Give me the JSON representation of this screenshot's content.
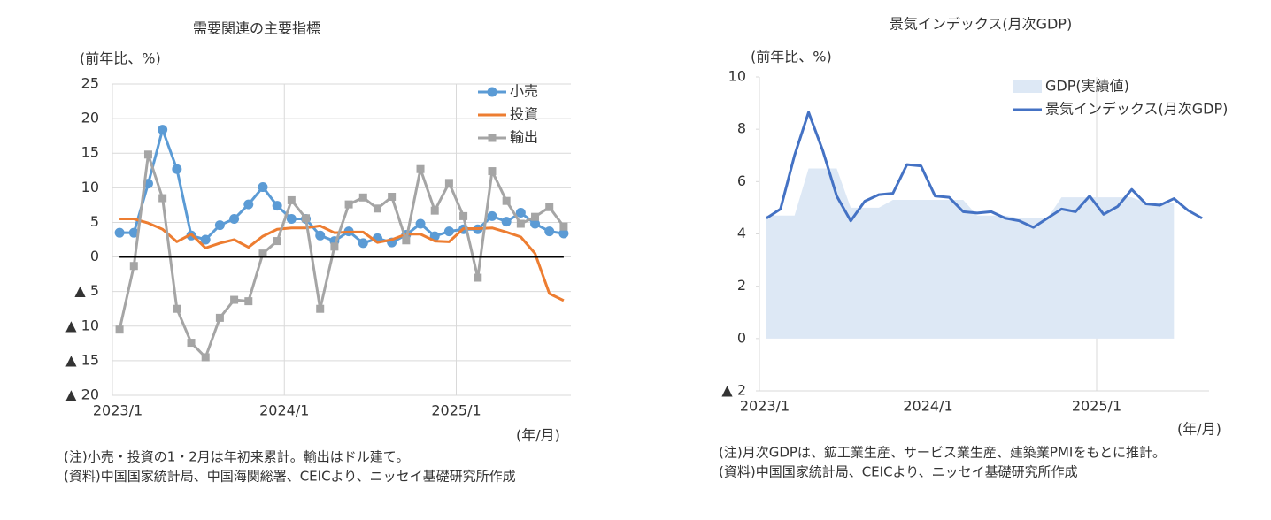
{
  "chart_data": [
    {
      "type": "line",
      "title": "需要関連の主要指標",
      "y_unit": "(前年比、%)",
      "x_unit": "(年/月)",
      "categories": [
        "2023/1",
        null,
        null,
        null,
        null,
        null,
        null,
        null,
        null,
        null,
        null,
        null,
        "2024/1",
        null,
        null,
        null,
        null,
        null,
        null,
        null,
        null,
        null,
        null,
        null,
        "2025/1",
        null,
        null,
        null,
        null,
        null,
        null,
        null
      ],
      "series": [
        {
          "name": "小売",
          "color": "#5b9bd5",
          "marker": "circle",
          "values": [
            3.5,
            3.5,
            10.6,
            18.4,
            12.7,
            3.1,
            2.5,
            4.6,
            5.5,
            7.6,
            10.1,
            7.4,
            5.5,
            5.5,
            3.1,
            2.3,
            3.7,
            2.0,
            2.7,
            2.1,
            3.2,
            4.8,
            3.0,
            3.7,
            4.0,
            4.0,
            5.9,
            5.1,
            6.4,
            4.8,
            3.7,
            3.4
          ]
        },
        {
          "name": "投資",
          "color": "#ed7d31",
          "values": [
            5.5,
            5.5,
            4.9,
            4.0,
            2.2,
            3.3,
            1.3,
            2.0,
            2.5,
            1.4,
            3.0,
            4.0,
            4.2,
            4.2,
            4.5,
            3.5,
            3.6,
            3.6,
            2.1,
            2.5,
            3.3,
            3.3,
            2.3,
            2.2,
            4.1,
            4.1,
            4.2,
            3.6,
            2.9,
            0.5,
            -5.3,
            -6.3
          ]
        },
        {
          "name": "輸出",
          "color": "#a5a5a5",
          "marker": "square",
          "values": [
            -10.5,
            -1.3,
            14.8,
            8.5,
            -7.5,
            -12.4,
            -14.5,
            -8.8,
            -6.2,
            -6.4,
            0.5,
            2.3,
            8.2,
            5.6,
            -7.5,
            1.5,
            7.6,
            8.6,
            7.0,
            8.7,
            2.4,
            12.7,
            6.7,
            10.7,
            5.9,
            -3.0,
            12.4,
            8.1,
            4.8,
            5.8,
            7.2,
            4.4
          ]
        }
      ],
      "ylim": [
        -20,
        25
      ],
      "yticks": [
        25,
        20,
        15,
        10,
        5,
        0,
        {
          "value": -5,
          "label": "▲ 5"
        },
        {
          "value": -10,
          "label": "▲ 10"
        },
        {
          "value": -15,
          "label": "▲ 15"
        },
        {
          "value": -20,
          "label": "▲ 20"
        }
      ],
      "grid": true,
      "zero_line": true,
      "legend": "upper right",
      "notes": [
        "(注)小売・投資の1・2月は年初来累計。輸出はドル建て。",
        "(資料)中国国家統計局、中国海関総署、CEICより、ニッセイ基礎研究所作成"
      ]
    },
    {
      "type": "line",
      "title": "景気インデックス(月次GDP)",
      "y_unit": "(前年比、%)",
      "x_unit": "(年/月)",
      "categories": [
        "2023/1",
        null,
        null,
        null,
        null,
        null,
        null,
        null,
        null,
        null,
        null,
        null,
        "2024/1",
        null,
        null,
        null,
        null,
        null,
        null,
        null,
        null,
        null,
        null,
        null,
        "2025/1",
        null,
        null,
        null,
        null,
        null,
        null,
        null
      ],
      "series": [
        {
          "name": "GDP(実績値)",
          "color": "#dde8f5",
          "style": "area",
          "values": [
            4.7,
            4.7,
            4.7,
            6.5,
            6.5,
            6.5,
            5.0,
            5.0,
            5.0,
            5.3,
            5.3,
            5.3,
            5.3,
            5.3,
            5.3,
            4.7,
            4.7,
            4.7,
            4.6,
            4.6,
            4.6,
            5.4,
            5.4,
            5.4,
            5.4,
            5.4,
            5.4,
            5.2,
            5.2,
            5.2,
            null,
            null
          ]
        },
        {
          "name": "景気インデックス(月次GDP)",
          "color": "#4472c4",
          "values": [
            4.6,
            4.95,
            7.0,
            8.65,
            7.2,
            5.45,
            4.5,
            5.25,
            5.5,
            5.55,
            6.65,
            6.6,
            5.45,
            5.4,
            4.85,
            4.8,
            4.85,
            4.6,
            4.5,
            4.25,
            4.6,
            4.95,
            4.85,
            5.45,
            4.75,
            5.05,
            5.7,
            5.15,
            5.1,
            5.35,
            4.9,
            4.6
          ]
        }
      ],
      "ylim": [
        -2,
        10
      ],
      "yticks": [
        10,
        8,
        6,
        4,
        2,
        0,
        {
          "value": -2,
          "label": "▲ 2"
        }
      ],
      "grid": false,
      "zero_line": false,
      "legend": "upper center",
      "notes": [
        "(注)月次GDPは、鉱工業生産、サービス業生産、建築業PMIをもとに推計。",
        "(資料)中国国家統計局、CEICより、ニッセイ基礎研究所作成"
      ]
    }
  ]
}
